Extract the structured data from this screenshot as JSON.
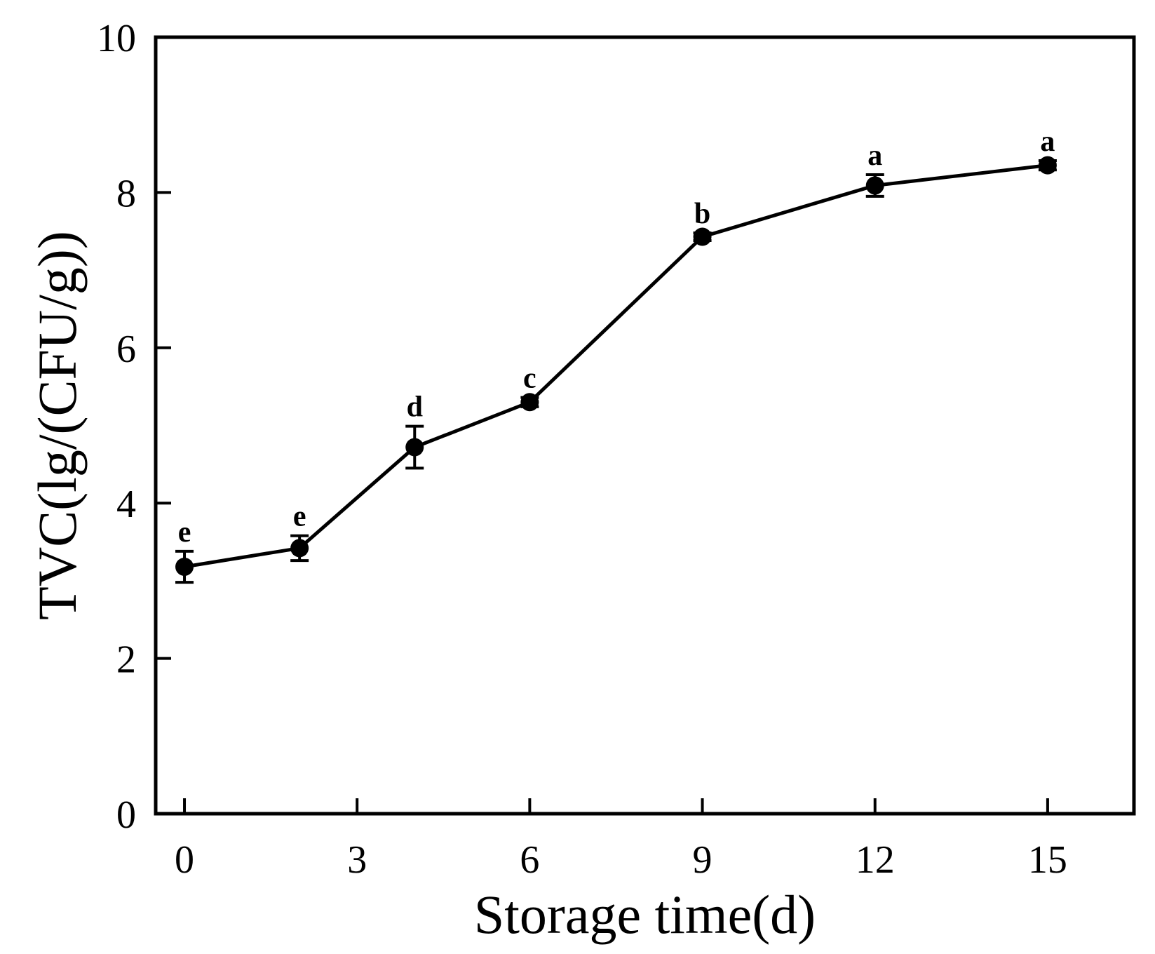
{
  "chart_data": {
    "type": "line",
    "title": "",
    "xlabel": "Storage time(d)",
    "ylabel": "TVC(lg/(CFU/g))",
    "xlim": [
      -0.5,
      16.5
    ],
    "ylim": [
      0,
      10
    ],
    "xticks": [
      0,
      3,
      6,
      9,
      12,
      15
    ],
    "yticks": [
      0,
      2,
      4,
      6,
      8,
      10
    ],
    "grid": false,
    "legend": "none",
    "colors": {
      "line": "#000000",
      "marker": "#000000",
      "frame": "#000000"
    },
    "series": [
      {
        "x": [
          0,
          2,
          4,
          6,
          9,
          12,
          15
        ],
        "y": [
          3.18,
          3.42,
          4.72,
          5.3,
          7.43,
          8.09,
          8.35
        ],
        "error": [
          0.2,
          0.16,
          0.27,
          0.06,
          0.05,
          0.14,
          0.06
        ],
        "labels": [
          "e",
          "e",
          "d",
          "c",
          "b",
          "a",
          "a"
        ]
      }
    ]
  }
}
